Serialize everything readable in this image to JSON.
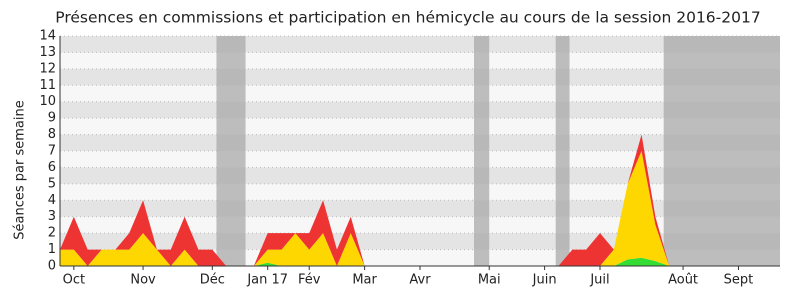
{
  "chart_data": {
    "type": "stacked-area",
    "title": "Présences en commissions et participation en hémicycle au cours de la session 2016-2017",
    "y_label": "Séances par semaine",
    "categories": [
      null,
      "Oct",
      null,
      null,
      null,
      null,
      "Nov",
      null,
      null,
      null,
      null,
      "Déc",
      null,
      null,
      null,
      "Jan 17",
      null,
      null,
      "Fév",
      null,
      null,
      null,
      "Mar",
      null,
      null,
      null,
      "Avr",
      null,
      null,
      null,
      null,
      "Mai",
      null,
      null,
      null,
      "Juin",
      null,
      null,
      null,
      "Juil",
      null,
      null,
      null,
      null,
      null,
      "Août",
      null,
      null,
      null,
      "Sept",
      null,
      null,
      null
    ],
    "series": [
      {
        "color": "#33dd33",
        "values": [
          0,
          0,
          0,
          0,
          0,
          0,
          0,
          0,
          0,
          0,
          0,
          0,
          0,
          0,
          0,
          0.2,
          0,
          0,
          0,
          0,
          0,
          0,
          0,
          0,
          0,
          0,
          0,
          0,
          0,
          0,
          0,
          0,
          0,
          0,
          0,
          0,
          0,
          0,
          0,
          0,
          0,
          0.4,
          0.5,
          0.3,
          0,
          0,
          0,
          0,
          0,
          0,
          0,
          0,
          0
        ]
      },
      {
        "color": "#ffd700",
        "values": [
          1,
          1,
          0,
          1,
          1,
          1,
          2,
          1,
          0,
          1,
          0,
          0,
          0,
          0,
          0,
          0.8,
          1,
          2,
          1,
          2,
          0,
          2,
          0,
          0,
          0,
          0,
          0,
          0,
          0,
          0,
          0,
          0,
          0,
          0,
          0,
          0,
          0,
          0,
          0,
          0,
          1,
          4.6,
          6.5,
          2.2,
          0,
          0,
          0,
          0,
          0,
          0,
          0,
          0,
          0
        ]
      },
      {
        "color": "#ee3333",
        "values": [
          0,
          2,
          1,
          0,
          0,
          1,
          2,
          0,
          1,
          2,
          1,
          1,
          0,
          0,
          0,
          1,
          1,
          0,
          1,
          2,
          1,
          1,
          0,
          0,
          0,
          0,
          0,
          0,
          0,
          0,
          0,
          0,
          0,
          0,
          0,
          0,
          0,
          1,
          1,
          2,
          0,
          0,
          1,
          0.5,
          0,
          0,
          0,
          0,
          0,
          0,
          0,
          0,
          0
        ]
      }
    ],
    "highlight_ranges": [
      [
        11.3,
        13.4
      ],
      [
        29.9,
        31.0
      ],
      [
        35.8,
        36.8
      ],
      [
        43.6,
        52
      ]
    ],
    "highlight_color": "#aaaaaa",
    "ylim": [
      0,
      14
    ],
    "yticks": [
      0,
      1,
      2,
      3,
      4,
      5,
      6,
      7,
      8,
      9,
      10,
      11,
      12,
      13,
      14
    ],
    "grid": true
  }
}
